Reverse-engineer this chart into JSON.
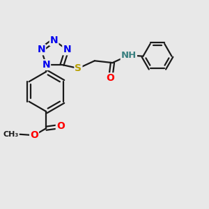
{
  "bg_color": "#e8e8e8",
  "bond_color": "#1a1a1a",
  "N_color": "#0000ee",
  "O_color": "#ff0000",
  "S_color": "#b8a000",
  "NH_color": "#3a8080",
  "font_size": 10,
  "bond_width": 1.6,
  "figsize": [
    3.0,
    3.0
  ],
  "dpi": 100,
  "xlim": [
    0,
    10
  ],
  "ylim": [
    0,
    10
  ]
}
